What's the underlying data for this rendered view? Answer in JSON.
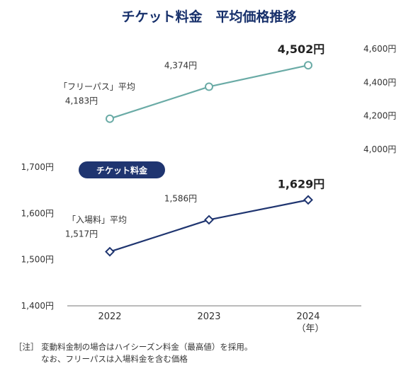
{
  "chart_data": {
    "type": "line",
    "title": "チケット料金　平均価格推移",
    "categories": [
      "2022",
      "2023",
      "2024"
    ],
    "x_unit": "（年）",
    "series": [
      {
        "name": "「フリーパス」平均",
        "values": [
          4183,
          4374,
          4502
        ],
        "value_labels": [
          "4,183円",
          "4,374円",
          "4,502円"
        ],
        "color": "#6aaba6",
        "marker": "circle",
        "axis": "right",
        "ylim": [
          4000,
          4600
        ],
        "ticks": [
          "4,000円",
          "4,200円",
          "4,400円",
          "4,600円"
        ]
      },
      {
        "name": "「入場料」平均",
        "values": [
          1517,
          1586,
          1629
        ],
        "value_labels": [
          "1,517円",
          "1,586円",
          "1,629円"
        ],
        "color": "#1f3570",
        "marker": "diamond",
        "axis": "left",
        "ylim": [
          1400,
          1700
        ],
        "ticks": [
          "1,400円",
          "1,500円",
          "1,600円",
          "1,700円"
        ]
      }
    ],
    "badge": "チケット料金",
    "notes": [
      "［注］ 変動料金制の場合はハイシーズン料金（最高値）を採用。",
      "なお、フリーパスは入場料金を含む価格"
    ]
  }
}
